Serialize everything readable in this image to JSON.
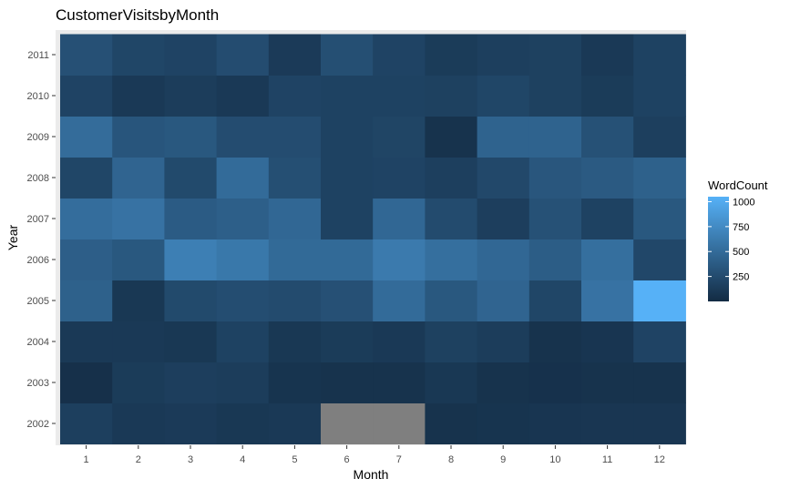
{
  "chart_data": {
    "type": "heatmap",
    "title": "CustomerVisitsbyMonth",
    "xlabel": "Month",
    "ylabel": "Year",
    "x": [
      "1",
      "2",
      "3",
      "4",
      "5",
      "6",
      "7",
      "8",
      "9",
      "10",
      "11",
      "12"
    ],
    "y": [
      "2002",
      "2003",
      "2004",
      "2005",
      "2006",
      "2007",
      "2008",
      "2009",
      "2010",
      "2011"
    ],
    "values": [
      [
        160,
        110,
        120,
        100,
        110,
        null,
        null,
        60,
        70,
        80,
        90,
        90
      ],
      [
        40,
        130,
        150,
        140,
        70,
        60,
        60,
        100,
        60,
        50,
        60,
        60
      ],
      [
        110,
        110,
        100,
        180,
        100,
        130,
        110,
        170,
        140,
        60,
        80,
        190
      ],
      [
        420,
        100,
        240,
        270,
        250,
        290,
        500,
        350,
        450,
        210,
        560,
        1050
      ],
      [
        400,
        350,
        660,
        600,
        490,
        490,
        620,
        530,
        470,
        390,
        530,
        220
      ],
      [
        520,
        560,
        380,
        410,
        470,
        180,
        470,
        250,
        150,
        300,
        180,
        350
      ],
      [
        210,
        450,
        240,
        500,
        280,
        180,
        190,
        160,
        230,
        340,
        370,
        420
      ],
      [
        510,
        330,
        350,
        260,
        260,
        180,
        200,
        60,
        440,
        440,
        300,
        160
      ],
      [
        190,
        110,
        140,
        110,
        190,
        180,
        180,
        170,
        210,
        170,
        130,
        180
      ],
      [
        290,
        210,
        190,
        260,
        120,
        280,
        190,
        130,
        160,
        170,
        110,
        180
      ]
    ],
    "na_color": "#7f7f7f",
    "legend": {
      "title": "WordCount",
      "breaks": [
        250,
        500,
        750,
        1000
      ],
      "limits": [
        0,
        1050
      ],
      "low_color": "#132b43",
      "high_color": "#56b1f7",
      "position": "right"
    },
    "panel_background": "#ebebeb",
    "grid": true
  }
}
